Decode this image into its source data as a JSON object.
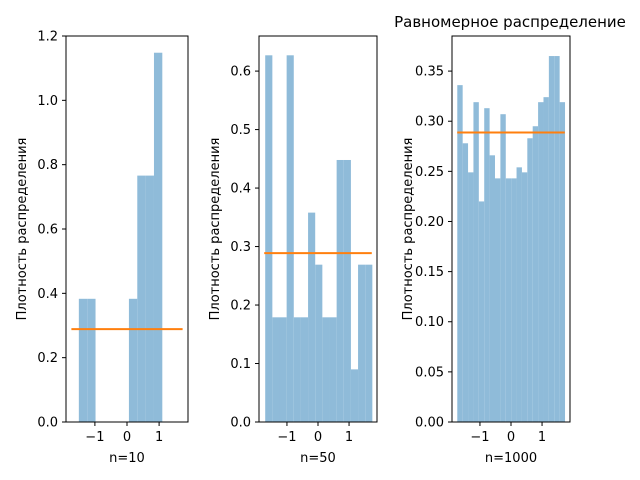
{
  "figure_title": "Равномерное распределение",
  "chart_data": [
    {
      "type": "bar",
      "xlabel": "n=10",
      "ylabel": "Плотность распределения",
      "xlim": [
        -1.9,
        1.9
      ],
      "ylim": [
        0,
        1.2
      ],
      "xticks": [
        {
          "value": -1,
          "label": "−1"
        },
        {
          "value": 0,
          "label": "0"
        },
        {
          "value": 1,
          "label": "1"
        }
      ],
      "yticks": [
        {
          "value": 0,
          "label": "0.0"
        },
        {
          "value": 0.2,
          "label": "0.2"
        },
        {
          "value": 0.4,
          "label": "0.4"
        },
        {
          "value": 0.6,
          "label": "0.6"
        },
        {
          "value": 0.8,
          "label": "0.8"
        },
        {
          "value": 1.0,
          "label": "1.0"
        },
        {
          "value": 1.2,
          "label": "1.2"
        }
      ],
      "hist_color": "#8fbbd9",
      "bin_edges": [
        -1.5,
        -1.24,
        -0.98,
        -0.72,
        -0.46,
        -0.2,
        0.06,
        0.32,
        0.58,
        0.84,
        1.1
      ],
      "values": [
        0.383,
        0.383,
        0,
        0,
        0,
        0,
        0.383,
        0.766,
        0.766,
        1.148
      ],
      "density_line": {
        "x": [
          -1.732,
          1.732
        ],
        "y": 0.2887,
        "color": "#ff7f0e"
      }
    },
    {
      "type": "bar",
      "xlabel": "n=50",
      "ylabel": "Плотность распределения",
      "xlim": [
        -1.9,
        1.9
      ],
      "ylim": [
        0,
        0.66
      ],
      "xticks": [
        {
          "value": -1,
          "label": "−1"
        },
        {
          "value": 0,
          "label": "0"
        },
        {
          "value": 1,
          "label": "1"
        }
      ],
      "yticks": [
        {
          "value": 0,
          "label": "0.0"
        },
        {
          "value": 0.1,
          "label": "0.1"
        },
        {
          "value": 0.2,
          "label": "0.2"
        },
        {
          "value": 0.3,
          "label": "0.3"
        },
        {
          "value": 0.4,
          "label": "0.4"
        },
        {
          "value": 0.5,
          "label": "0.5"
        },
        {
          "value": 0.6,
          "label": "0.6"
        }
      ],
      "hist_color": "#8fbbd9",
      "bin_edges": [
        -1.7,
        -1.47,
        -1.24,
        -1.01,
        -0.78,
        -0.55,
        -0.32,
        -0.09,
        0.14,
        0.37,
        0.6,
        0.83,
        1.06,
        1.29,
        1.52,
        1.75
      ],
      "values": [
        0.627,
        0.179,
        0.179,
        0.627,
        0.179,
        0.179,
        0.358,
        0.269,
        0.179,
        0.179,
        0.448,
        0.448,
        0.09,
        0.269,
        0.269
      ],
      "density_line": {
        "x": [
          -1.732,
          1.732
        ],
        "y": 0.2887,
        "color": "#ff7f0e"
      }
    },
    {
      "type": "bar",
      "xlabel": "n=1000",
      "ylabel": "Плотность распределения",
      "xlim": [
        -1.9,
        1.9
      ],
      "ylim": [
        0,
        0.385
      ],
      "xticks": [
        {
          "value": -1,
          "label": "−1"
        },
        {
          "value": 0,
          "label": "0"
        },
        {
          "value": 1,
          "label": "1"
        }
      ],
      "yticks": [
        {
          "value": 0,
          "label": "0.00"
        },
        {
          "value": 0.05,
          "label": "0.05"
        },
        {
          "value": 0.1,
          "label": "0.10"
        },
        {
          "value": 0.15,
          "label": "0.15"
        },
        {
          "value": 0.2,
          "label": "0.20"
        },
        {
          "value": 0.25,
          "label": "0.25"
        },
        {
          "value": 0.3,
          "label": "0.30"
        },
        {
          "value": 0.35,
          "label": "0.35"
        }
      ],
      "hist_color": "#8fbbd9",
      "bin_edges": [
        -1.73,
        -1.5565,
        -1.383,
        -1.2095,
        -1.036,
        -0.8625,
        -0.689,
        -0.5155,
        -0.342,
        -0.1685,
        0.005,
        0.1785,
        0.352,
        0.5255,
        0.699,
        0.8725,
        1.046,
        1.2195,
        1.393,
        1.5665,
        1.74
      ],
      "values": [
        0.336,
        0.278,
        0.249,
        0.319,
        0.22,
        0.313,
        0.266,
        0.243,
        0.307,
        0.243,
        0.243,
        0.254,
        0.249,
        0.283,
        0.295,
        0.319,
        0.324,
        0.365,
        0.365,
        0.319
      ],
      "density_line": {
        "x": [
          -1.732,
          1.732
        ],
        "y": 0.2887,
        "color": "#ff7f0e"
      }
    }
  ]
}
